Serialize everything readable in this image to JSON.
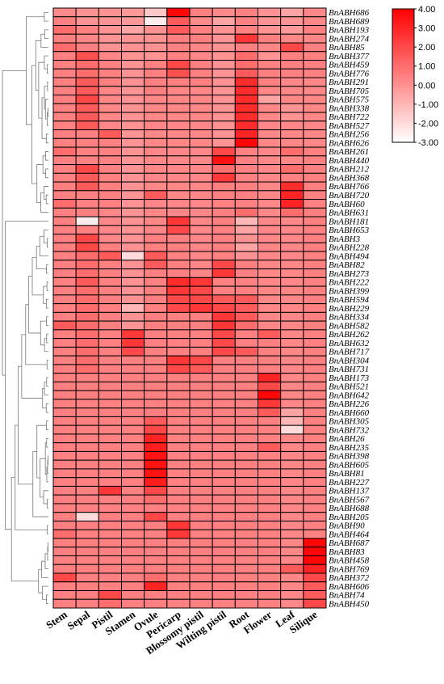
{
  "chart_data": {
    "type": "heatmap",
    "title": "",
    "rows": [
      "BnABH686",
      "BnABH689",
      "BnABH193",
      "BnABH274",
      "BnABH85",
      "BnABH377",
      "BnABH459",
      "BnABH776",
      "BnABH291",
      "BnABH705",
      "BnABH575",
      "BnABH338",
      "BnABH722",
      "BnABH527",
      "BnABH256",
      "BnABH626",
      "BnABH261",
      "BnABH440",
      "BnABH212",
      "BnABH368",
      "BnABH766",
      "BnABH720",
      "BnABH60",
      "BnABH631",
      "BnABH181",
      "BnABH653",
      "BnABH3",
      "BnABH228",
      "BnABH494",
      "BnABH82",
      "BnABH273",
      "BnABH222",
      "BnABH399",
      "BnABH594",
      "BnABH229",
      "BnABH334",
      "BnABH582",
      "BnABH262",
      "BnABH632",
      "BnABH717",
      "BnABH304",
      "BnABH731",
      "BnABH173",
      "BnABH521",
      "BnABH642",
      "BnABH226",
      "BnABH660",
      "BnABH305",
      "BnABH732",
      "BnABH26",
      "BnABH235",
      "BnABH398",
      "BnABH605",
      "BnABH81",
      "BnABH227",
      "BnABH137",
      "BnABH567",
      "BnABH688",
      "BnABH205",
      "BnABH90",
      "BnABH464",
      "BnABH687",
      "BnABH83",
      "BnABH458",
      "BnABH769",
      "BnABH372",
      "BnABH606",
      "BnABH74",
      "BnABH450"
    ],
    "columns": [
      "Stem",
      "Sepal",
      "Pistil",
      "Stamen",
      "Ovule",
      "Pericarp",
      "Blossomy pistil",
      "Wilting pistil",
      "Root",
      "Flower",
      "Leaf",
      "Silique"
    ],
    "colorscale": {
      "min": -3,
      "max": 4,
      "low_color": "#ffffff",
      "high_color": "#ff0000",
      "ticks": [
        "4.00",
        "3.00",
        "2.00",
        "1.00",
        "0.00",
        "-1.00",
        "-2.00",
        "-3.00"
      ]
    },
    "values": [
      [
        0.2,
        0.0,
        0.0,
        -0.2,
        -1.5,
        3.8,
        0.5,
        0.2,
        0.5,
        0.0,
        -0.5,
        0.3
      ],
      [
        0.5,
        0.0,
        0.0,
        -0.2,
        -2.5,
        1.5,
        0.2,
        -0.5,
        0.5,
        0.0,
        0.0,
        0.3
      ],
      [
        1.0,
        0.5,
        0.0,
        -0.5,
        0.0,
        1.5,
        0.5,
        0.0,
        0.5,
        0.0,
        -0.2,
        0.5
      ],
      [
        0.5,
        0.3,
        0.0,
        0.0,
        0.0,
        0.5,
        0.5,
        0.0,
        2.5,
        0.5,
        0.3,
        0.3
      ],
      [
        1.0,
        0.5,
        0.0,
        0.0,
        0.0,
        0.5,
        0.3,
        0.0,
        0.5,
        0.3,
        2.0,
        0.5
      ],
      [
        0.5,
        1.8,
        0.3,
        0.0,
        0.0,
        0.5,
        0.3,
        0.0,
        1.0,
        0.0,
        0.5,
        0.5
      ],
      [
        0.5,
        1.0,
        0.5,
        0.0,
        0.5,
        2.0,
        0.5,
        0.0,
        1.0,
        0.5,
        0.5,
        0.5
      ],
      [
        0.5,
        1.0,
        0.5,
        0.0,
        0.5,
        1.8,
        0.5,
        0.0,
        1.5,
        0.5,
        0.5,
        0.5
      ],
      [
        0.5,
        1.5,
        0.5,
        0.0,
        0.5,
        0.5,
        0.5,
        0.0,
        2.8,
        0.5,
        0.3,
        0.3
      ],
      [
        0.5,
        1.5,
        0.3,
        0.0,
        0.5,
        0.3,
        0.3,
        0.0,
        2.8,
        0.3,
        0.3,
        0.3
      ],
      [
        0.5,
        2.0,
        0.3,
        0.0,
        0.3,
        0.3,
        0.3,
        0.0,
        2.8,
        -0.5,
        0.3,
        0.3
      ],
      [
        0.5,
        1.5,
        0.3,
        0.0,
        0.3,
        0.3,
        0.3,
        0.0,
        2.8,
        0.3,
        0.0,
        0.3
      ],
      [
        0.5,
        1.5,
        0.3,
        0.0,
        0.3,
        0.3,
        0.3,
        0.0,
        2.8,
        0.3,
        0.0,
        0.3
      ],
      [
        0.5,
        1.5,
        0.3,
        0.0,
        0.3,
        0.3,
        0.3,
        0.0,
        2.8,
        0.3,
        0.3,
        0.3
      ],
      [
        0.5,
        0.5,
        1.5,
        0.0,
        0.3,
        0.3,
        0.3,
        0.0,
        3.0,
        0.3,
        0.3,
        0.3
      ],
      [
        0.5,
        0.5,
        0.5,
        0.0,
        0.3,
        0.3,
        0.3,
        0.0,
        3.8,
        0.3,
        0.3,
        0.3
      ],
      [
        1.0,
        0.5,
        0.5,
        0.0,
        0.3,
        0.3,
        0.3,
        2.0,
        0.5,
        0.3,
        1.0,
        0.5
      ],
      [
        0.5,
        0.5,
        0.5,
        0.0,
        0.3,
        0.3,
        0.3,
        3.5,
        0.5,
        0.3,
        0.3,
        0.5
      ],
      [
        0.5,
        2.0,
        0.5,
        0.0,
        0.3,
        0.3,
        0.3,
        1.0,
        0.5,
        0.3,
        1.0,
        0.5
      ],
      [
        0.5,
        1.5,
        0.5,
        0.0,
        0.3,
        0.3,
        0.3,
        2.5,
        0.5,
        0.3,
        0.5,
        0.5
      ],
      [
        0.5,
        1.5,
        0.5,
        0.0,
        0.3,
        0.3,
        0.3,
        0.5,
        0.5,
        0.3,
        2.8,
        0.5
      ],
      [
        0.5,
        0.5,
        0.5,
        0.0,
        1.5,
        0.3,
        0.3,
        0.5,
        0.5,
        0.3,
        3.0,
        0.5
      ],
      [
        1.0,
        0.5,
        0.5,
        0.0,
        0.3,
        0.3,
        0.3,
        0.5,
        0.5,
        0.3,
        3.0,
        0.5
      ],
      [
        0.5,
        0.5,
        0.3,
        0.0,
        0.3,
        0.3,
        0.3,
        0.5,
        1.0,
        0.3,
        1.0,
        0.5
      ],
      [
        0.5,
        -2.5,
        0.3,
        0.0,
        0.3,
        2.5,
        0.3,
        0.5,
        -1.0,
        0.3,
        0.3,
        0.5
      ],
      [
        0.5,
        0.5,
        0.3,
        0.0,
        0.3,
        2.0,
        0.3,
        0.5,
        -0.5,
        0.3,
        0.3,
        0.5
      ],
      [
        0.5,
        2.0,
        0.3,
        0.0,
        0.5,
        0.5,
        0.3,
        0.5,
        0.0,
        0.3,
        0.3,
        0.5
      ],
      [
        0.5,
        2.0,
        0.5,
        0.0,
        0.5,
        0.5,
        0.3,
        0.5,
        -0.5,
        0.3,
        0.3,
        0.5
      ],
      [
        0.5,
        1.0,
        1.5,
        -2.0,
        1.5,
        0.5,
        0.3,
        0.5,
        0.0,
        0.3,
        0.3,
        0.5
      ],
      [
        0.5,
        1.0,
        0.5,
        0.0,
        1.5,
        0.5,
        0.3,
        2.0,
        0.5,
        0.3,
        0.3,
        0.5
      ],
      [
        0.5,
        1.0,
        0.5,
        0.0,
        0.5,
        0.5,
        0.3,
        2.5,
        0.5,
        0.3,
        0.3,
        0.5
      ],
      [
        0.5,
        1.5,
        0.5,
        0.0,
        0.5,
        2.8,
        2.5,
        0.5,
        0.5,
        0.3,
        0.3,
        0.5
      ],
      [
        0.5,
        1.0,
        0.5,
        0.0,
        0.5,
        2.5,
        2.0,
        0.5,
        0.5,
        0.3,
        0.3,
        0.5
      ],
      [
        0.5,
        1.0,
        0.5,
        0.0,
        0.5,
        2.0,
        2.0,
        1.5,
        1.5,
        0.3,
        0.3,
        0.5
      ],
      [
        0.5,
        1.0,
        0.5,
        -1.0,
        0.5,
        2.0,
        2.5,
        2.0,
        1.5,
        0.3,
        0.3,
        0.5
      ],
      [
        0.5,
        1.0,
        0.5,
        0.0,
        0.5,
        0.5,
        0.5,
        2.5,
        1.5,
        0.3,
        0.3,
        0.5
      ],
      [
        1.5,
        1.0,
        0.5,
        0.0,
        0.5,
        0.5,
        0.5,
        2.5,
        1.0,
        0.3,
        0.3,
        0.5
      ],
      [
        0.5,
        1.0,
        0.5,
        2.5,
        0.5,
        0.5,
        0.5,
        2.0,
        0.5,
        1.5,
        0.3,
        0.5
      ],
      [
        0.5,
        1.0,
        0.5,
        2.5,
        0.5,
        0.5,
        0.5,
        2.0,
        0.5,
        0.5,
        0.3,
        0.5
      ],
      [
        0.5,
        1.0,
        0.5,
        2.0,
        0.5,
        0.5,
        0.5,
        2.0,
        1.5,
        0.5,
        0.3,
        0.5
      ],
      [
        0.5,
        1.0,
        0.5,
        0.5,
        0.5,
        2.5,
        2.0,
        0.5,
        0.5,
        0.5,
        0.3,
        0.5
      ],
      [
        0.5,
        1.0,
        0.5,
        0.5,
        0.5,
        2.0,
        1.5,
        0.5,
        0.5,
        0.5,
        0.3,
        0.5
      ],
      [
        0.5,
        0.5,
        0.5,
        0.5,
        0.5,
        0.5,
        0.5,
        0.5,
        0.5,
        3.0,
        0.3,
        0.5
      ],
      [
        0.5,
        0.5,
        0.5,
        0.5,
        0.5,
        0.5,
        0.5,
        0.5,
        0.5,
        2.0,
        0.3,
        0.5
      ],
      [
        0.5,
        0.5,
        0.5,
        0.5,
        0.5,
        0.5,
        0.5,
        0.5,
        0.5,
        3.8,
        0.3,
        0.5
      ],
      [
        0.5,
        0.5,
        0.5,
        0.5,
        0.5,
        0.5,
        0.5,
        0.5,
        0.5,
        2.5,
        0.3,
        0.5
      ],
      [
        0.5,
        0.5,
        0.5,
        0.5,
        0.5,
        0.5,
        0.5,
        0.5,
        0.5,
        1.5,
        -0.5,
        0.5
      ],
      [
        0.5,
        0.5,
        0.5,
        0.5,
        1.5,
        0.5,
        0.5,
        0.5,
        0.5,
        0.5,
        -1.0,
        0.5
      ],
      [
        0.5,
        0.5,
        0.5,
        0.5,
        2.0,
        0.5,
        0.5,
        0.5,
        0.5,
        0.5,
        -2.0,
        0.5
      ],
      [
        0.5,
        0.5,
        0.5,
        0.5,
        3.0,
        0.5,
        0.5,
        0.5,
        0.5,
        0.5,
        0.3,
        0.5
      ],
      [
        0.5,
        0.5,
        0.5,
        0.5,
        3.2,
        0.5,
        0.5,
        0.5,
        0.5,
        1.5,
        0.3,
        0.5
      ],
      [
        0.5,
        0.5,
        0.5,
        0.5,
        3.5,
        0.5,
        0.5,
        0.5,
        0.5,
        0.5,
        0.3,
        0.5
      ],
      [
        0.5,
        0.5,
        0.5,
        0.5,
        3.5,
        0.5,
        0.5,
        0.5,
        0.5,
        0.5,
        0.3,
        0.5
      ],
      [
        0.5,
        0.5,
        0.5,
        0.5,
        3.5,
        0.5,
        0.5,
        0.5,
        0.5,
        0.5,
        0.3,
        0.5
      ],
      [
        0.5,
        0.5,
        0.5,
        0.5,
        3.2,
        0.5,
        0.5,
        0.5,
        0.5,
        0.5,
        0.3,
        0.5
      ],
      [
        0.5,
        0.5,
        2.5,
        0.5,
        2.0,
        0.5,
        0.5,
        0.5,
        0.5,
        0.5,
        0.3,
        0.5
      ],
      [
        0.5,
        0.5,
        0.5,
        0.5,
        1.0,
        0.5,
        0.5,
        0.5,
        0.5,
        0.5,
        0.3,
        0.5
      ],
      [
        0.5,
        0.5,
        0.5,
        0.5,
        0.5,
        0.5,
        0.5,
        0.5,
        0.5,
        0.5,
        0.3,
        0.5
      ],
      [
        0.5,
        -2.0,
        0.5,
        0.5,
        2.0,
        0.5,
        0.5,
        0.5,
        0.5,
        0.5,
        0.3,
        0.5
      ],
      [
        0.5,
        0.5,
        0.5,
        0.5,
        0.5,
        2.5,
        0.5,
        0.5,
        0.5,
        0.5,
        0.3,
        0.5
      ],
      [
        1.0,
        0.5,
        0.5,
        0.5,
        0.5,
        2.5,
        0.5,
        0.5,
        0.5,
        0.5,
        0.3,
        0.5
      ],
      [
        0.5,
        0.5,
        0.5,
        0.5,
        0.5,
        0.5,
        0.5,
        0.5,
        0.5,
        0.5,
        0.3,
        3.8
      ],
      [
        0.5,
        0.5,
        0.5,
        0.5,
        0.5,
        0.5,
        0.5,
        0.5,
        0.5,
        0.5,
        0.3,
        3.8
      ],
      [
        0.5,
        0.5,
        0.5,
        0.5,
        0.5,
        0.5,
        0.5,
        0.5,
        0.5,
        0.5,
        0.3,
        3.8
      ],
      [
        0.5,
        0.5,
        0.5,
        0.5,
        0.5,
        0.5,
        0.5,
        0.5,
        0.5,
        0.5,
        1.5,
        3.0
      ],
      [
        2.0,
        0.5,
        0.5,
        0.5,
        1.0,
        0.5,
        0.5,
        0.5,
        0.5,
        0.5,
        0.3,
        2.0
      ],
      [
        0.5,
        0.5,
        0.5,
        0.5,
        3.0,
        0.5,
        0.5,
        0.5,
        0.5,
        0.5,
        0.3,
        1.5
      ],
      [
        0.5,
        0.5,
        2.0,
        0.5,
        0.5,
        0.5,
        0.5,
        0.5,
        0.5,
        0.5,
        0.3,
        1.5
      ],
      [
        0.5,
        0.5,
        1.0,
        0.5,
        0.5,
        0.5,
        0.5,
        0.5,
        0.5,
        0.5,
        0.3,
        2.0
      ]
    ]
  }
}
